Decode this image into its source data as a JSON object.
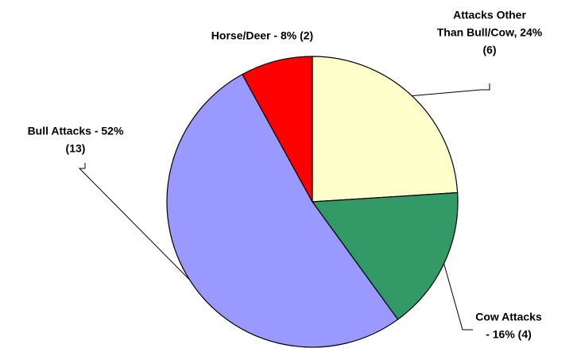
{
  "chart_data": {
    "type": "pie",
    "categories": [
      [
        "Attacks Other",
        "Than Bull/Cow, 24%",
        "(6)"
      ],
      [
        "Cow Attacks",
        "- 16% (4)"
      ],
      [
        "Bull Attacks - 52%",
        "(13)"
      ],
      [
        "Horse/Deer - 8% (2)"
      ]
    ],
    "values": [
      24,
      16,
      52,
      8
    ],
    "colors": [
      "#ffffcc",
      "#339966",
      "#9999ff",
      "#ff0000"
    ]
  }
}
